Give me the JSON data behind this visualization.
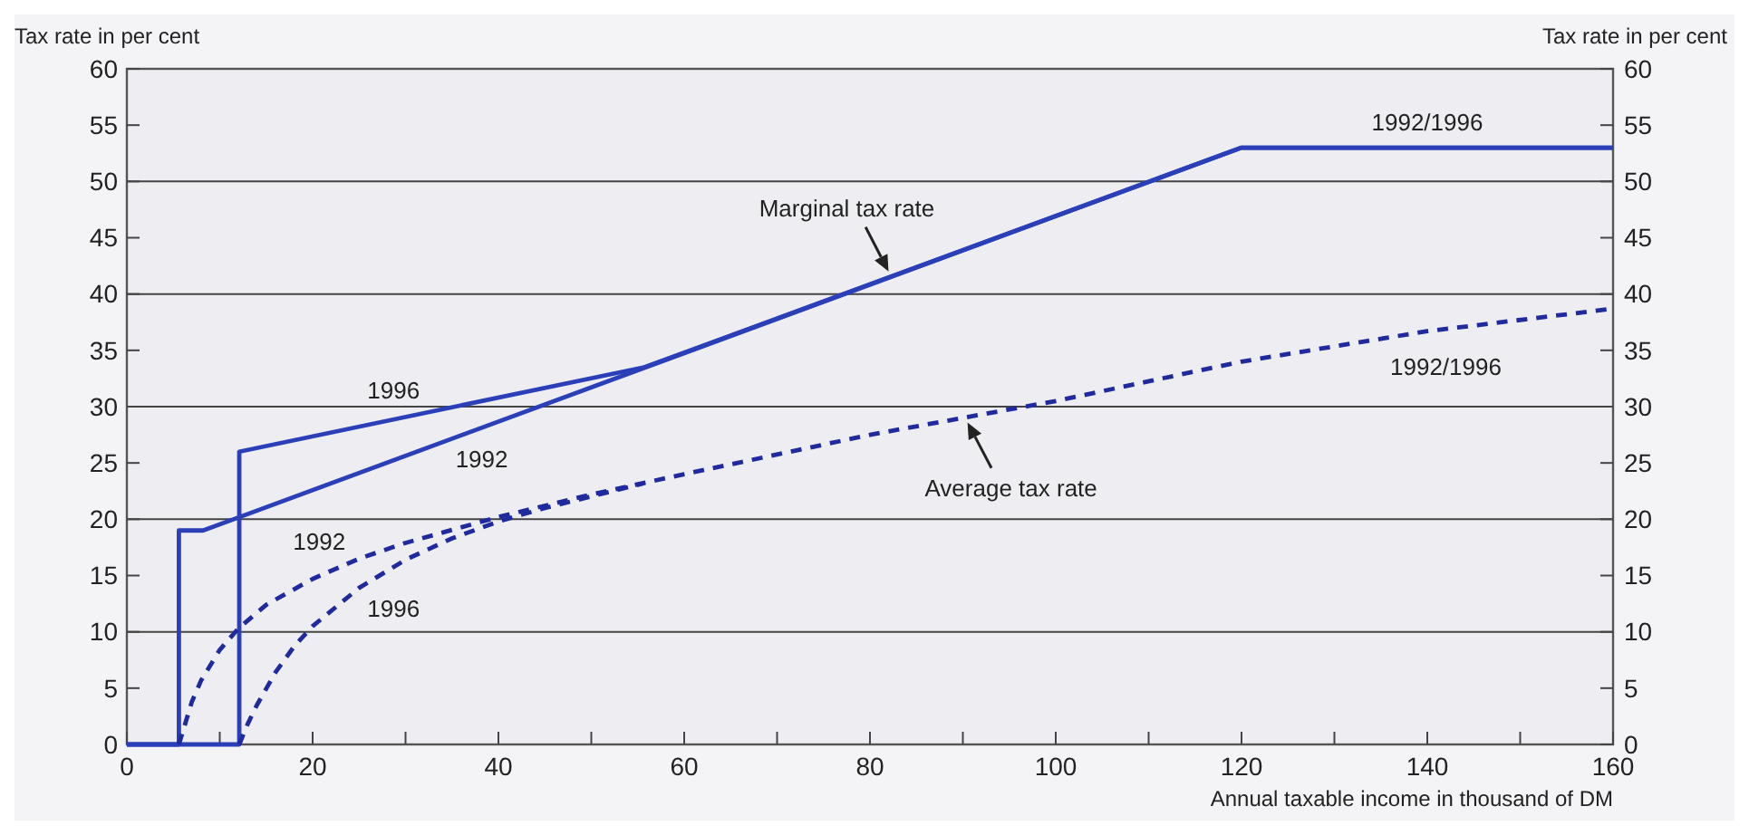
{
  "chart_data": {
    "type": "line",
    "xlabel": "Annual taxable income in thousand of DM",
    "ylabel": "Tax rate in per cent",
    "y2label": "Tax rate in per cent",
    "xlim": [
      0,
      160
    ],
    "xticks": [
      0,
      {
        "value": 10,
        "label": null
      },
      20,
      {
        "value": 30,
        "label": null
      },
      40,
      {
        "value": 50,
        "label": null
      },
      60,
      {
        "value": 70,
        "label": null
      },
      80,
      {
        "value": 90,
        "label": null
      },
      100,
      {
        "value": 110,
        "label": null
      },
      120,
      {
        "value": 130,
        "label": null
      },
      140,
      {
        "value": 150,
        "label": null
      },
      160
    ],
    "ylim": [
      0,
      60
    ],
    "yticks": [
      0,
      5,
      10,
      15,
      20,
      25,
      30,
      35,
      40,
      45,
      50,
      55,
      60
    ],
    "y2lim": [
      0,
      60
    ],
    "y2ticks": [
      0,
      5,
      10,
      15,
      20,
      25,
      30,
      35,
      40,
      45,
      50,
      55,
      60
    ],
    "grid": "y",
    "marker": "none",
    "series": [
      {
        "color": "#2b3fb8",
        "line_style": "solid",
        "x": [
          0,
          5.6,
          5.6,
          8.2,
          120,
          160
        ],
        "values": [
          0,
          0,
          19,
          19,
          53,
          53
        ]
      },
      {
        "color": "#2b3fb8",
        "line_style": "solid",
        "x": [
          0,
          12.1,
          12.1,
          55.7,
          120,
          160
        ],
        "values": [
          0,
          0,
          26,
          33.5,
          53,
          53
        ]
      },
      {
        "color": "#1f2a9e",
        "line_style": "dashed",
        "x": [
          5.6,
          7,
          8,
          10,
          12,
          15,
          20,
          25,
          30,
          40,
          50,
          60,
          80,
          100,
          120,
          140,
          160
        ],
        "values": [
          0,
          3.8,
          5.7,
          8.4,
          10.3,
          12.4,
          14.7,
          16.5,
          17.9,
          20.2,
          22.2,
          24,
          27.5,
          30.5,
          34,
          36.7,
          38.7
        ]
      },
      {
        "color": "#1f2a9e",
        "line_style": "dashed",
        "x": [
          12.1,
          13,
          14,
          16,
          18,
          20,
          25,
          30,
          35,
          40,
          45,
          55.7
        ],
        "values": [
          0,
          1.8,
          3.5,
          6.4,
          8.7,
          10.5,
          13.9,
          16.4,
          18.3,
          19.8,
          21,
          23.2
        ]
      }
    ],
    "annotations": [
      {
        "text": "Marginal tax rate",
        "x": 82,
        "y": 42
      },
      {
        "text": "Average tax rate",
        "x": 90.5,
        "y": 28.6
      },
      {
        "text": "1996",
        "x": 28.7,
        "y": 28.9
      },
      {
        "text": "1992",
        "x": 38.2,
        "y": 28.1
      },
      {
        "text": "1992",
        "x": 20.7,
        "y": 15
      },
      {
        "text": "1996",
        "x": 28.7,
        "y": 15.8
      },
      {
        "text": "1992/1996",
        "x": 140,
        "y": 53
      },
      {
        "text": "1992/1996",
        "x": 142,
        "y": 36.8
      }
    ]
  }
}
